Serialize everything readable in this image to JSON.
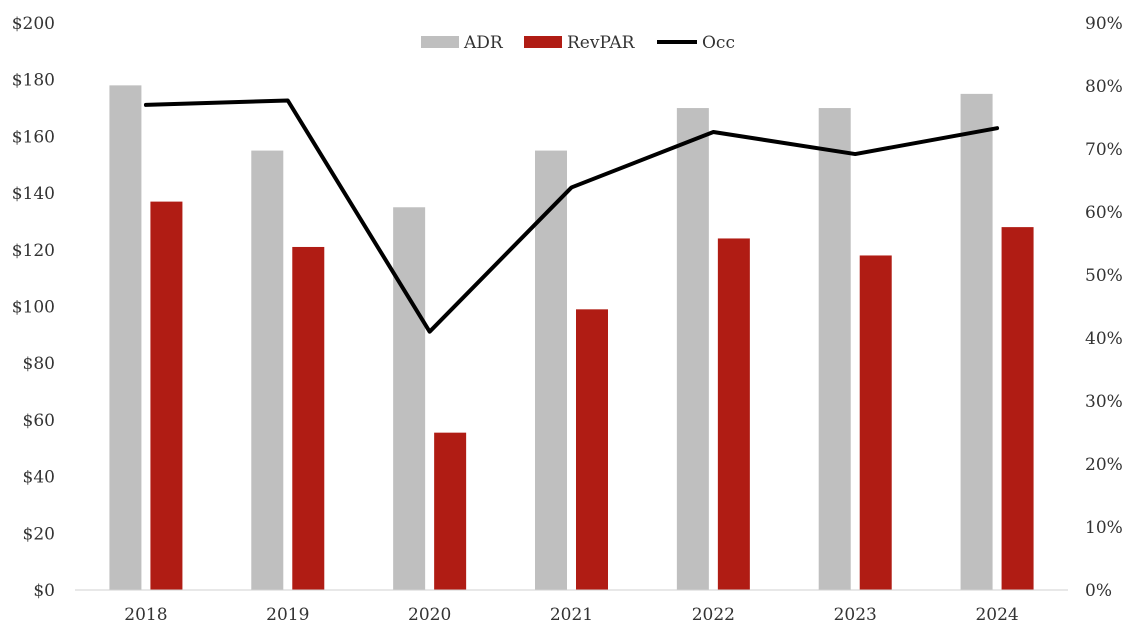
{
  "chart_data": {
    "type": "bar",
    "categories": [
      "2018",
      "2019",
      "2020",
      "2021",
      "2022",
      "2023",
      "2024"
    ],
    "series": [
      {
        "name": "ADR",
        "type": "bar",
        "axis": "left",
        "color": "#bfbfbf",
        "values": [
          178,
          155,
          135,
          155,
          170,
          170,
          175
        ]
      },
      {
        "name": "RevPAR",
        "type": "bar",
        "axis": "left",
        "color": "#b01c14",
        "values": [
          137,
          121,
          55.5,
          99,
          124,
          118,
          128
        ]
      },
      {
        "name": "Occ",
        "type": "line",
        "axis": "right",
        "color": "#000000",
        "values": [
          77,
          77.7,
          41,
          63.9,
          72.7,
          69.2,
          73.3
        ]
      }
    ],
    "y_left": {
      "ylim": [
        0,
        200
      ],
      "ticks": [
        0,
        20,
        40,
        60,
        80,
        100,
        120,
        140,
        160,
        180,
        200
      ],
      "tick_labels": [
        "$0",
        "$20",
        "$40",
        "$60",
        "$80",
        "$100",
        "$120",
        "$140",
        "$160",
        "$180",
        "$200"
      ]
    },
    "y_right": {
      "ylim": [
        0,
        90
      ],
      "ticks": [
        0,
        10,
        20,
        30,
        40,
        50,
        60,
        70,
        80,
        90
      ],
      "tick_labels": [
        "0%",
        "10%",
        "20%",
        "30%",
        "40%",
        "50%",
        "60%",
        "70%",
        "80%",
        "90%"
      ]
    },
    "grid": false,
    "legend_position": "top-center"
  }
}
